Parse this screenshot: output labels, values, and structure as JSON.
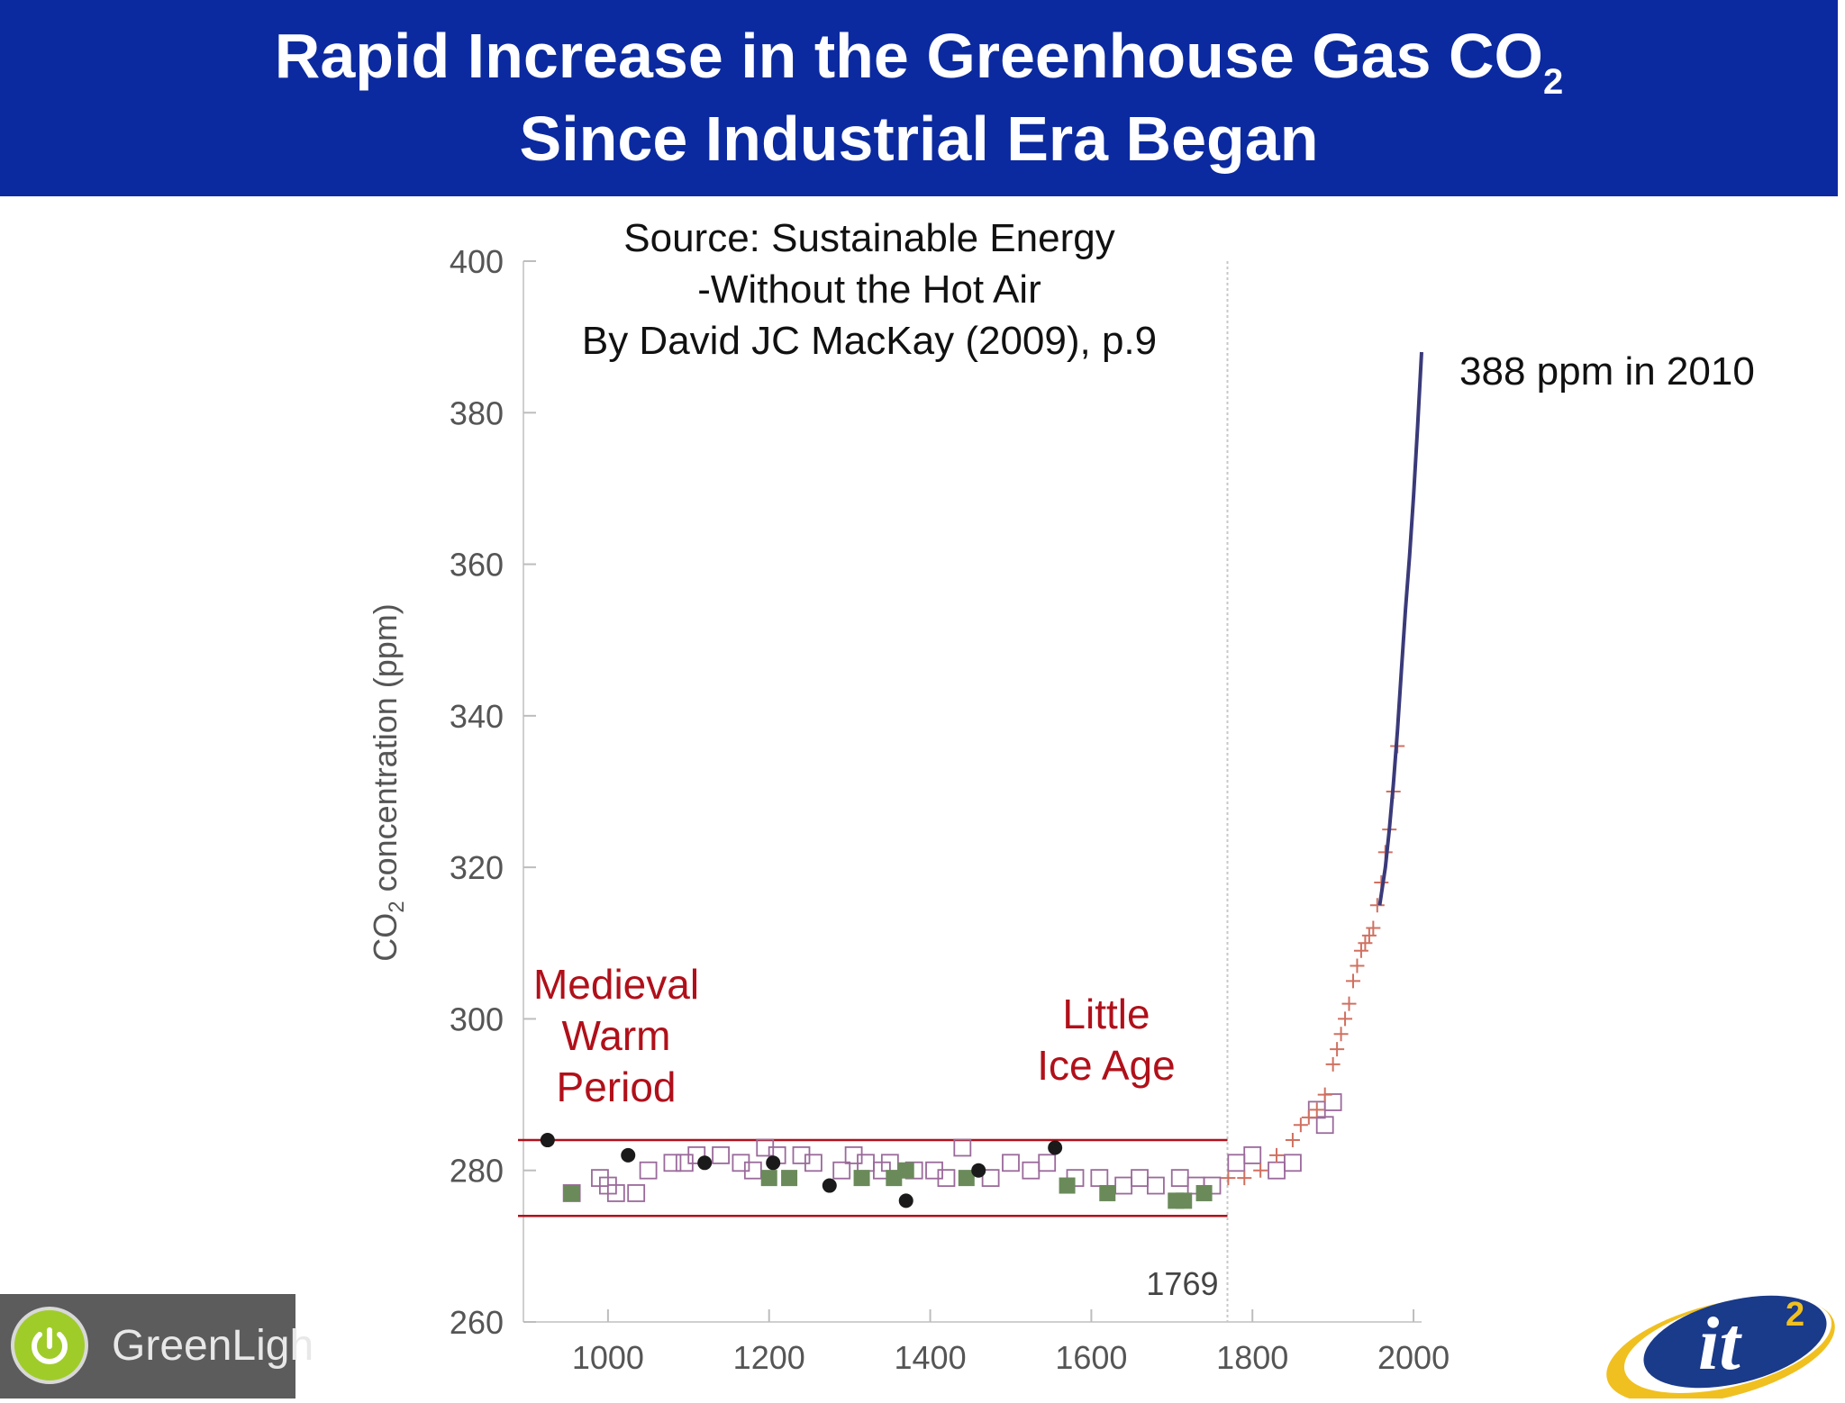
{
  "header": {
    "title_line1": "Rapid Increase in the Greenhouse Gas CO",
    "title_line1_sub": "2",
    "title_line2": "Since Industrial Era Began",
    "background_color": "#0b2aa0"
  },
  "source": {
    "line1": "Source: Sustainable Energy",
    "line2": "-Without the Hot Air",
    "line3": "By David JC MacKay (2009), p.9"
  },
  "annotations": {
    "current_value": "388 ppm in 2010",
    "medieval_line1": "Medieval",
    "medieval_line2": "Warm",
    "medieval_line3": "Period",
    "ice_age_line1": "Little",
    "ice_age_line2": "Ice Age",
    "marker_year": "1769",
    "label_color": "#b0101a"
  },
  "logos": {
    "greenlight_text": "GreenLigh",
    "it2_text": "it",
    "it2_sup": "2"
  },
  "chart_data": {
    "type": "scatter",
    "ylabel": "CO",
    "ylabel_sub": "2",
    "ylabel_rest": " concentration (ppm)",
    "xlim": [
      895,
      2010
    ],
    "ylim": [
      260,
      400
    ],
    "x_ticks": [
      1000,
      1200,
      1400,
      1600,
      1800,
      2000
    ],
    "y_ticks": [
      260,
      280,
      300,
      320,
      340,
      360,
      380,
      400
    ],
    "vertical_marker_x": 1769,
    "preindustrial_band": [
      274,
      284
    ],
    "series": [
      {
        "marker": "open-square",
        "color": "#9a6a9a",
        "points": [
          [
            955,
            277
          ],
          [
            990,
            279
          ],
          [
            1000,
            278
          ],
          [
            1010,
            277
          ],
          [
            1035,
            277
          ],
          [
            1050,
            280
          ],
          [
            1080,
            281
          ],
          [
            1095,
            281
          ],
          [
            1110,
            282
          ],
          [
            1140,
            282
          ],
          [
            1165,
            281
          ],
          [
            1180,
            280
          ],
          [
            1195,
            283
          ],
          [
            1210,
            282
          ],
          [
            1240,
            282
          ],
          [
            1255,
            281
          ],
          [
            1290,
            280
          ],
          [
            1305,
            282
          ],
          [
            1320,
            281
          ],
          [
            1340,
            280
          ],
          [
            1350,
            281
          ],
          [
            1380,
            280
          ],
          [
            1405,
            280
          ],
          [
            1420,
            279
          ],
          [
            1440,
            283
          ],
          [
            1475,
            279
          ],
          [
            1500,
            281
          ],
          [
            1525,
            280
          ],
          [
            1545,
            281
          ],
          [
            1580,
            279
          ],
          [
            1610,
            279
          ],
          [
            1640,
            278
          ],
          [
            1660,
            279
          ],
          [
            1680,
            278
          ],
          [
            1710,
            279
          ],
          [
            1730,
            278
          ],
          [
            1750,
            278
          ],
          [
            1780,
            281
          ],
          [
            1800,
            282
          ],
          [
            1830,
            280
          ],
          [
            1850,
            281
          ],
          [
            1880,
            288
          ],
          [
            1890,
            286
          ],
          [
            1900,
            289
          ]
        ]
      },
      {
        "marker": "filled-square",
        "color": "#6a8a5a",
        "points": [
          [
            955,
            277
          ],
          [
            1200,
            279
          ],
          [
            1225,
            279
          ],
          [
            1315,
            279
          ],
          [
            1355,
            279
          ],
          [
            1370,
            280
          ],
          [
            1445,
            279
          ],
          [
            1570,
            278
          ],
          [
            1620,
            277
          ],
          [
            1705,
            276
          ],
          [
            1715,
            276
          ],
          [
            1740,
            277
          ]
        ]
      },
      {
        "marker": "filled-circle",
        "color": "#1a1a1a",
        "points": [
          [
            925,
            284
          ],
          [
            1025,
            282
          ],
          [
            1120,
            281
          ],
          [
            1205,
            281
          ],
          [
            1275,
            278
          ],
          [
            1370,
            276
          ],
          [
            1460,
            280
          ],
          [
            1555,
            283
          ]
        ]
      },
      {
        "marker": "plus",
        "color": "#d07060",
        "points": [
          [
            1770,
            279
          ],
          [
            1790,
            279
          ],
          [
            1810,
            280
          ],
          [
            1830,
            282
          ],
          [
            1850,
            284
          ],
          [
            1860,
            286
          ],
          [
            1870,
            287
          ],
          [
            1880,
            288
          ],
          [
            1890,
            290
          ],
          [
            1900,
            294
          ],
          [
            1905,
            296
          ],
          [
            1910,
            298
          ],
          [
            1915,
            300
          ],
          [
            1920,
            302
          ],
          [
            1925,
            305
          ],
          [
            1930,
            307
          ],
          [
            1935,
            309
          ],
          [
            1940,
            310
          ],
          [
            1945,
            311
          ],
          [
            1950,
            312
          ],
          [
            1955,
            315
          ],
          [
            1960,
            318
          ],
          [
            1965,
            322
          ],
          [
            1970,
            325
          ],
          [
            1975,
            330
          ],
          [
            1980,
            336
          ]
        ]
      },
      {
        "marker": "line",
        "color": "#3a3a7a",
        "points": [
          [
            1958,
            315
          ],
          [
            1965,
            320
          ],
          [
            1970,
            325
          ],
          [
            1975,
            331
          ],
          [
            1980,
            338
          ],
          [
            1985,
            346
          ],
          [
            1990,
            354
          ],
          [
            1995,
            361
          ],
          [
            2000,
            369
          ],
          [
            2005,
            378
          ],
          [
            2010,
            388
          ]
        ]
      }
    ]
  }
}
